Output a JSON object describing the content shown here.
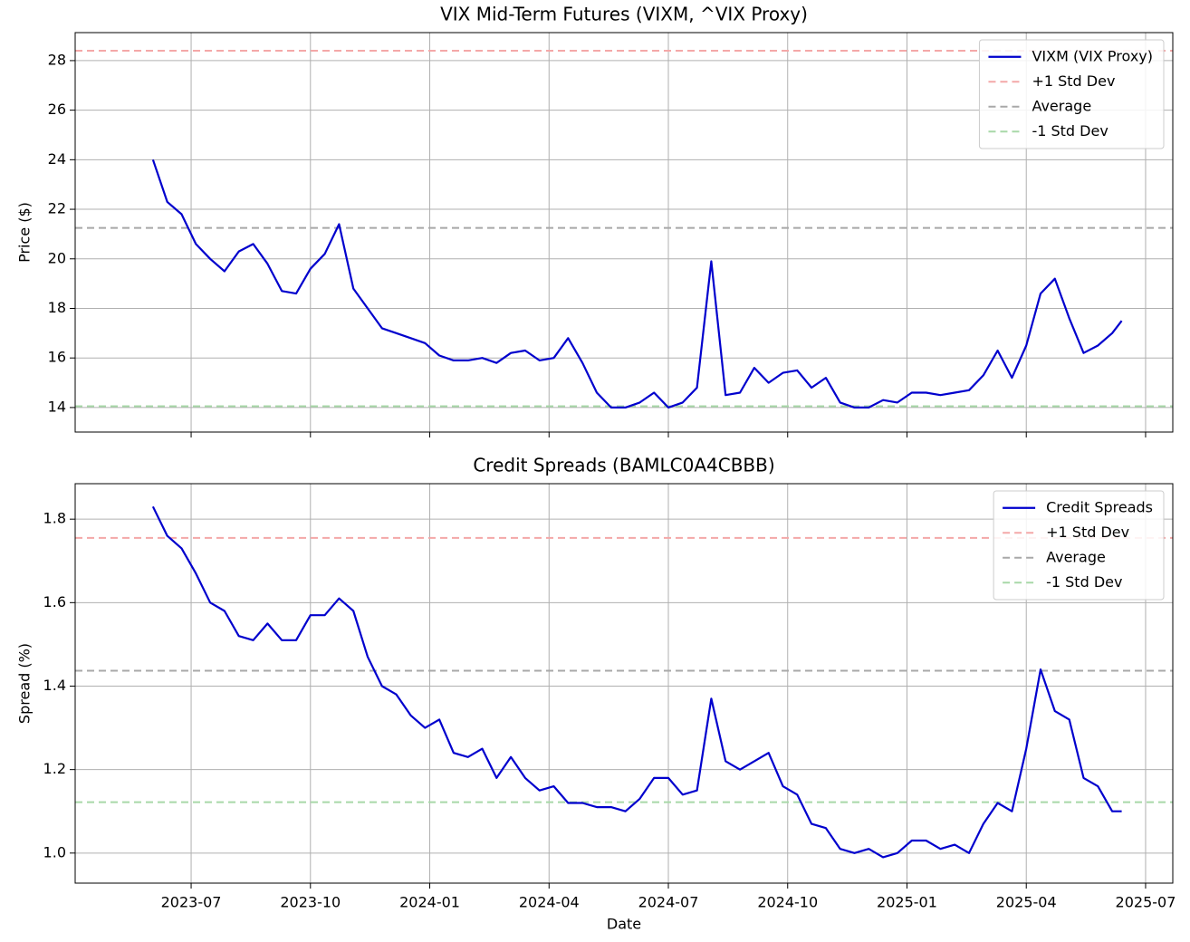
{
  "chart_data": [
    {
      "type": "line",
      "title": "VIX Mid-Term Futures (VIXM, ^VIX Proxy)",
      "ylabel": "Price ($)",
      "x": [
        2023.42,
        2023.45,
        2023.48,
        2023.51,
        2023.54,
        2023.57,
        2023.6,
        2023.63,
        2023.66,
        2023.69,
        2023.72,
        2023.75,
        2023.78,
        2023.81,
        2023.84,
        2023.87,
        2023.9,
        2023.93,
        2023.96,
        2023.99,
        2024.02,
        2024.05,
        2024.08,
        2024.11,
        2024.14,
        2024.17,
        2024.2,
        2024.23,
        2024.26,
        2024.29,
        2024.32,
        2024.35,
        2024.38,
        2024.41,
        2024.44,
        2024.47,
        2024.5,
        2024.53,
        2024.56,
        2024.59,
        2024.62,
        2024.65,
        2024.68,
        2024.71,
        2024.74,
        2024.77,
        2024.8,
        2024.83,
        2024.86,
        2024.89,
        2024.92,
        2024.95,
        2024.98,
        2025.01,
        2025.04,
        2025.07,
        2025.1,
        2025.13,
        2025.16,
        2025.19,
        2025.22,
        2025.25,
        2025.28,
        2025.31,
        2025.34,
        2025.37,
        2025.4,
        2025.43,
        2025.45
      ],
      "series": [
        {
          "name": "VIXM (VIX Proxy)",
          "color": "#0000cd",
          "values": [
            24.0,
            22.3,
            21.8,
            20.6,
            20.0,
            19.5,
            20.3,
            20.6,
            19.8,
            18.7,
            18.6,
            19.6,
            20.2,
            21.4,
            18.8,
            18.0,
            17.2,
            17.0,
            16.8,
            16.6,
            16.1,
            15.9,
            15.9,
            16.0,
            15.8,
            16.2,
            16.3,
            15.9,
            16.0,
            16.8,
            15.8,
            14.6,
            14.0,
            14.0,
            14.2,
            14.6,
            14.0,
            14.2,
            14.8,
            19.9,
            14.5,
            14.6,
            15.6,
            15.0,
            15.4,
            15.5,
            14.8,
            15.2,
            14.2,
            14.0,
            14.0,
            14.3,
            14.2,
            14.6,
            14.6,
            14.5,
            14.6,
            14.7,
            15.3,
            16.3,
            15.2,
            16.5,
            18.6,
            19.2,
            17.6,
            16.2,
            16.5,
            17.0,
            17.5
          ]
        }
      ],
      "reference_lines": [
        {
          "name": "+1 Std Dev",
          "color": "#f4a8a8",
          "value": 28.4
        },
        {
          "name": "Average",
          "color": "#a8a8a8",
          "value": 21.25
        },
        {
          "name": "-1 Std Dev",
          "color": "#a8d8a8",
          "value": 14.05
        }
      ],
      "xlim": [
        2023.257,
        2025.557
      ],
      "xticks": [
        2023.5,
        2023.75,
        2024.0,
        2024.25,
        2024.5,
        2024.75,
        2025.0,
        2025.25,
        2025.5
      ],
      "xtick_labels": false,
      "ylim": [
        13.01,
        29.13
      ],
      "yticks": [
        14,
        16,
        18,
        20,
        22,
        24,
        26,
        28
      ],
      "grid": true,
      "legend": "upper right"
    },
    {
      "type": "line",
      "title": "Credit Spreads (BAMLC0A4CBBB)",
      "ylabel": "Spread (%)",
      "xlabel": "Date",
      "x": [
        2023.42,
        2023.45,
        2023.48,
        2023.51,
        2023.54,
        2023.57,
        2023.6,
        2023.63,
        2023.66,
        2023.69,
        2023.72,
        2023.75,
        2023.78,
        2023.81,
        2023.84,
        2023.87,
        2023.9,
        2023.93,
        2023.96,
        2023.99,
        2024.02,
        2024.05,
        2024.08,
        2024.11,
        2024.14,
        2024.17,
        2024.2,
        2024.23,
        2024.26,
        2024.29,
        2024.32,
        2024.35,
        2024.38,
        2024.41,
        2024.44,
        2024.47,
        2024.5,
        2024.53,
        2024.56,
        2024.59,
        2024.62,
        2024.65,
        2024.68,
        2024.71,
        2024.74,
        2024.77,
        2024.8,
        2024.83,
        2024.86,
        2024.89,
        2024.92,
        2024.95,
        2024.98,
        2025.01,
        2025.04,
        2025.07,
        2025.1,
        2025.13,
        2025.16,
        2025.19,
        2025.22,
        2025.25,
        2025.28,
        2025.31,
        2025.34,
        2025.37,
        2025.4,
        2025.43,
        2025.45
      ],
      "series": [
        {
          "name": "Credit Spreads",
          "color": "#0000cd",
          "values": [
            1.83,
            1.76,
            1.73,
            1.67,
            1.6,
            1.58,
            1.52,
            1.51,
            1.55,
            1.51,
            1.51,
            1.57,
            1.57,
            1.61,
            1.58,
            1.47,
            1.4,
            1.38,
            1.33,
            1.3,
            1.32,
            1.24,
            1.23,
            1.25,
            1.18,
            1.23,
            1.18,
            1.15,
            1.16,
            1.12,
            1.12,
            1.11,
            1.11,
            1.1,
            1.13,
            1.18,
            1.18,
            1.14,
            1.15,
            1.37,
            1.22,
            1.2,
            1.22,
            1.24,
            1.16,
            1.14,
            1.07,
            1.06,
            1.01,
            1.0,
            1.01,
            0.99,
            1.0,
            1.03,
            1.03,
            1.01,
            1.02,
            1.0,
            1.07,
            1.12,
            1.1,
            1.25,
            1.44,
            1.34,
            1.32,
            1.18,
            1.16,
            1.1,
            1.1
          ]
        }
      ],
      "reference_lines": [
        {
          "name": "+1 Std Dev",
          "color": "#f4a8a8",
          "value": 1.755
        },
        {
          "name": "Average",
          "color": "#a8a8a8",
          "value": 1.437
        },
        {
          "name": "-1 Std Dev",
          "color": "#a8d8a8",
          "value": 1.122
        }
      ],
      "xlim": [
        2023.257,
        2025.557
      ],
      "xticks": [
        {
          "value": 2023.5,
          "label": "2023-07"
        },
        {
          "value": 2023.75,
          "label": "2023-10"
        },
        {
          "value": 2024.0,
          "label": "2024-01"
        },
        {
          "value": 2024.25,
          "label": "2024-04"
        },
        {
          "value": 2024.5,
          "label": "2024-07"
        },
        {
          "value": 2024.75,
          "label": "2024-10"
        },
        {
          "value": 2025.0,
          "label": "2025-01"
        },
        {
          "value": 2025.25,
          "label": "2025-04"
        },
        {
          "value": 2025.5,
          "label": "2025-07"
        }
      ],
      "xtick_labels": true,
      "ylim": [
        0.928,
        1.885
      ],
      "yticks": [
        {
          "value": 1.0,
          "label": "1.0"
        },
        1.2,
        1.4,
        1.6,
        1.8
      ],
      "grid": true,
      "legend": "upper right"
    }
  ]
}
